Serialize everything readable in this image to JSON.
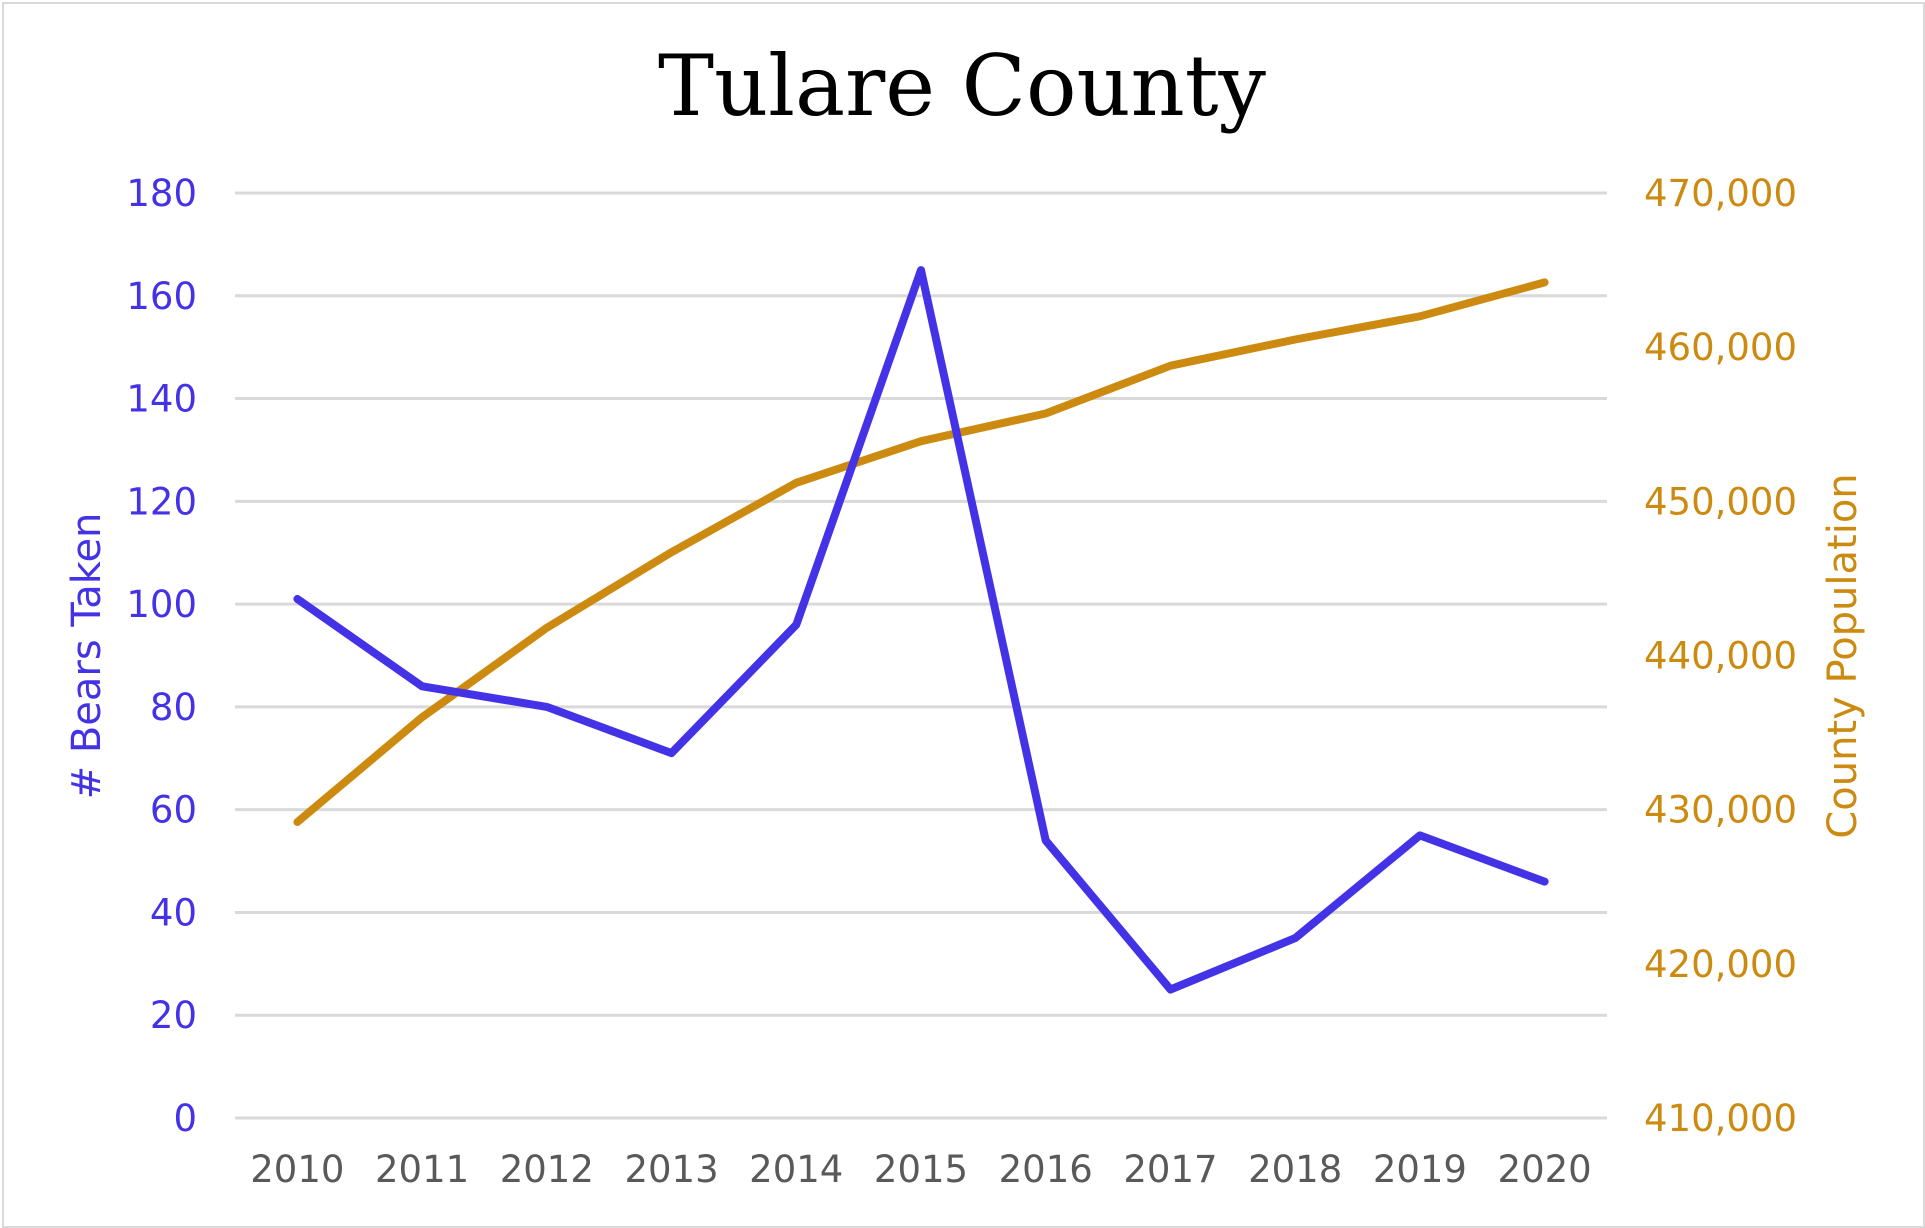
{
  "colors": {
    "bears": "#4433e6",
    "population": "#cc8b10",
    "x_ticks": "#595959"
  },
  "chart_data": {
    "type": "line",
    "title": "Tulare County",
    "x": [
      "2010",
      "2011",
      "2012",
      "2013",
      "2014",
      "2015",
      "2016",
      "2017",
      "2018",
      "2019",
      "2020"
    ],
    "y_left": {
      "label": "# Bears Taken",
      "lim": [
        0,
        180
      ],
      "ticks": [
        "0",
        "20",
        "40",
        "60",
        "80",
        "100",
        "120",
        "140",
        "160",
        "180"
      ]
    },
    "y_right": {
      "label": "County Population",
      "lim": [
        410000,
        470000
      ],
      "ticks": [
        "410,000",
        "420,000",
        "430,000",
        "440,000",
        "450,000",
        "460,000",
        "470,000"
      ]
    },
    "series": [
      {
        "axis": "left",
        "color": "#4433e6",
        "values": [
          101,
          84,
          80,
          71,
          96,
          165,
          54,
          25,
          35,
          55,
          46
        ]
      },
      {
        "axis": "right",
        "color": "#cc8b10",
        "values": [
          429200,
          436000,
          441800,
          446700,
          451200,
          453900,
          455700,
          458800,
          460500,
          462000,
          464200
        ]
      }
    ],
    "grid": true,
    "legend": "none"
  }
}
